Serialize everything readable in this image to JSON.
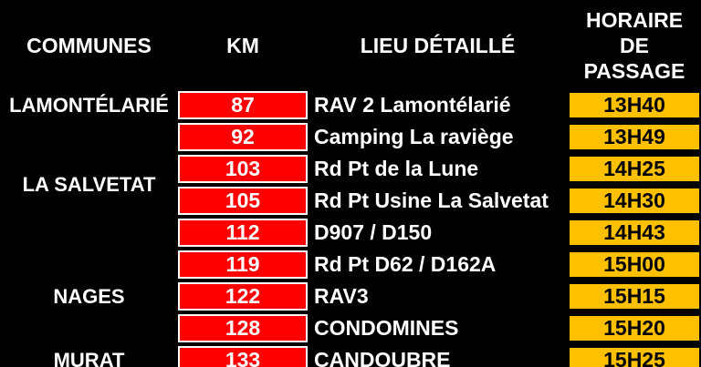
{
  "table": {
    "headers": {
      "communes": "COMMUNES",
      "km": "KM",
      "lieu": "LIEU DÉTAILLÉ",
      "horaire": "HORAIRE DE PASSAGE"
    },
    "communes": [
      {
        "label": "LAMONTÉLARIÉ",
        "rows": "1"
      },
      {
        "label": "LA SALVETAT",
        "rows": "2-5"
      },
      {
        "label": "NAGES",
        "rows": "6-8"
      },
      {
        "label": "MURAT",
        "rows": "9"
      }
    ],
    "rows": [
      {
        "km": "87",
        "lieu": "RAV 2 Lamontélarié",
        "horaire": "13H40"
      },
      {
        "km": "92",
        "lieu": "Camping La raviège",
        "horaire": "13H49"
      },
      {
        "km": "103",
        "lieu": "Rd Pt de la Lune",
        "horaire": "14H25"
      },
      {
        "km": "105",
        "lieu": "Rd Pt Usine La Salvetat",
        "horaire": "14H30"
      },
      {
        "km": "112",
        "lieu": "D907 / D150",
        "horaire": "14H43"
      },
      {
        "km": "119",
        "lieu": "Rd Pt D62 / D162A",
        "horaire": "15H00"
      },
      {
        "km": "122",
        "lieu": "RAV3",
        "horaire": "15H15"
      },
      {
        "km": "128",
        "lieu": "CONDOMINES",
        "horaire": "15H20"
      },
      {
        "km": "133",
        "lieu": "CANDOUBRE",
        "horaire": "15H25"
      }
    ]
  },
  "colors": {
    "background": "#000000",
    "km_cell_fill": "#FF0000",
    "km_cell_border": "#FFFFFF",
    "horaire_cell_fill": "#FFC000",
    "horaire_cell_border": "#000000",
    "text_light": "#FFFFFF",
    "text_dark": "#000000"
  }
}
